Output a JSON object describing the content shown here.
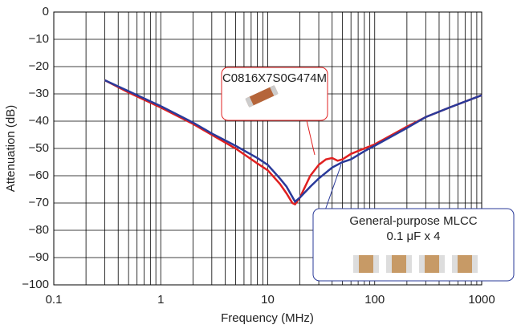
{
  "chart_data": {
    "type": "line",
    "x_label": "Frequency (MHz)",
    "y_label": "Attenuation (dB)",
    "xlog": true,
    "grid": true,
    "xlim": [
      0.1,
      1000
    ],
    "xticks": [
      0.1,
      1,
      10,
      100,
      1000
    ],
    "xminorticks": [
      0.2,
      0.3,
      0.4,
      0.5,
      0.6,
      0.7,
      0.8,
      0.9,
      2,
      3,
      4,
      5,
      6,
      7,
      8,
      9,
      20,
      30,
      40,
      50,
      60,
      70,
      80,
      90,
      200,
      300,
      400,
      500,
      600,
      700,
      800,
      900
    ],
    "ylim": [
      -100,
      0
    ],
    "yticks": [
      0,
      {
        "value": -10,
        "label": "−10"
      },
      {
        "value": -20,
        "label": "−20"
      },
      {
        "value": -30,
        "label": "−30"
      },
      {
        "value": -40,
        "label": "−40"
      },
      {
        "value": -50,
        "label": "−50"
      },
      {
        "value": -60,
        "label": "−60"
      },
      {
        "value": -70,
        "label": "−70"
      },
      {
        "value": -80,
        "label": "−80"
      },
      {
        "value": -90,
        "label": "−90"
      },
      {
        "value": -100,
        "label": "−100"
      }
    ],
    "series": [
      {
        "name": "C0816X7S0G474M",
        "color": "#e02020",
        "x": [
          0.3,
          0.5,
          1,
          2,
          3,
          5,
          8,
          10,
          13,
          15,
          17,
          18,
          20,
          25,
          30,
          35,
          40,
          45,
          50,
          60,
          80,
          100,
          200,
          300,
          500,
          1000
        ],
        "values": [
          -25,
          -29.5,
          -35,
          -41,
          -45,
          -50,
          -55.5,
          -58,
          -63,
          -66.5,
          -70,
          -70.5,
          -68,
          -60,
          -56,
          -54,
          -53.5,
          -54.5,
          -54,
          -52,
          -50,
          -48.5,
          -42,
          -38.5,
          -35,
          -30.5
        ]
      },
      {
        "name": "General-purpose MLCC",
        "color": "#2a3a9a",
        "x": [
          0.3,
          0.5,
          1,
          2,
          3,
          5,
          8,
          10,
          13,
          15,
          18,
          20,
          25,
          30,
          40,
          50,
          60,
          80,
          100,
          200,
          300,
          500,
          1000
        ],
        "values": [
          -25,
          -29,
          -34.5,
          -40.5,
          -44.5,
          -49,
          -53.5,
          -56,
          -61,
          -64,
          -69.5,
          -68,
          -64,
          -61,
          -57,
          -55,
          -54,
          -51,
          -49,
          -42.5,
          -38.5,
          -35,
          -30.5
        ]
      }
    ],
    "annotation": "0.1 μF x 4"
  }
}
